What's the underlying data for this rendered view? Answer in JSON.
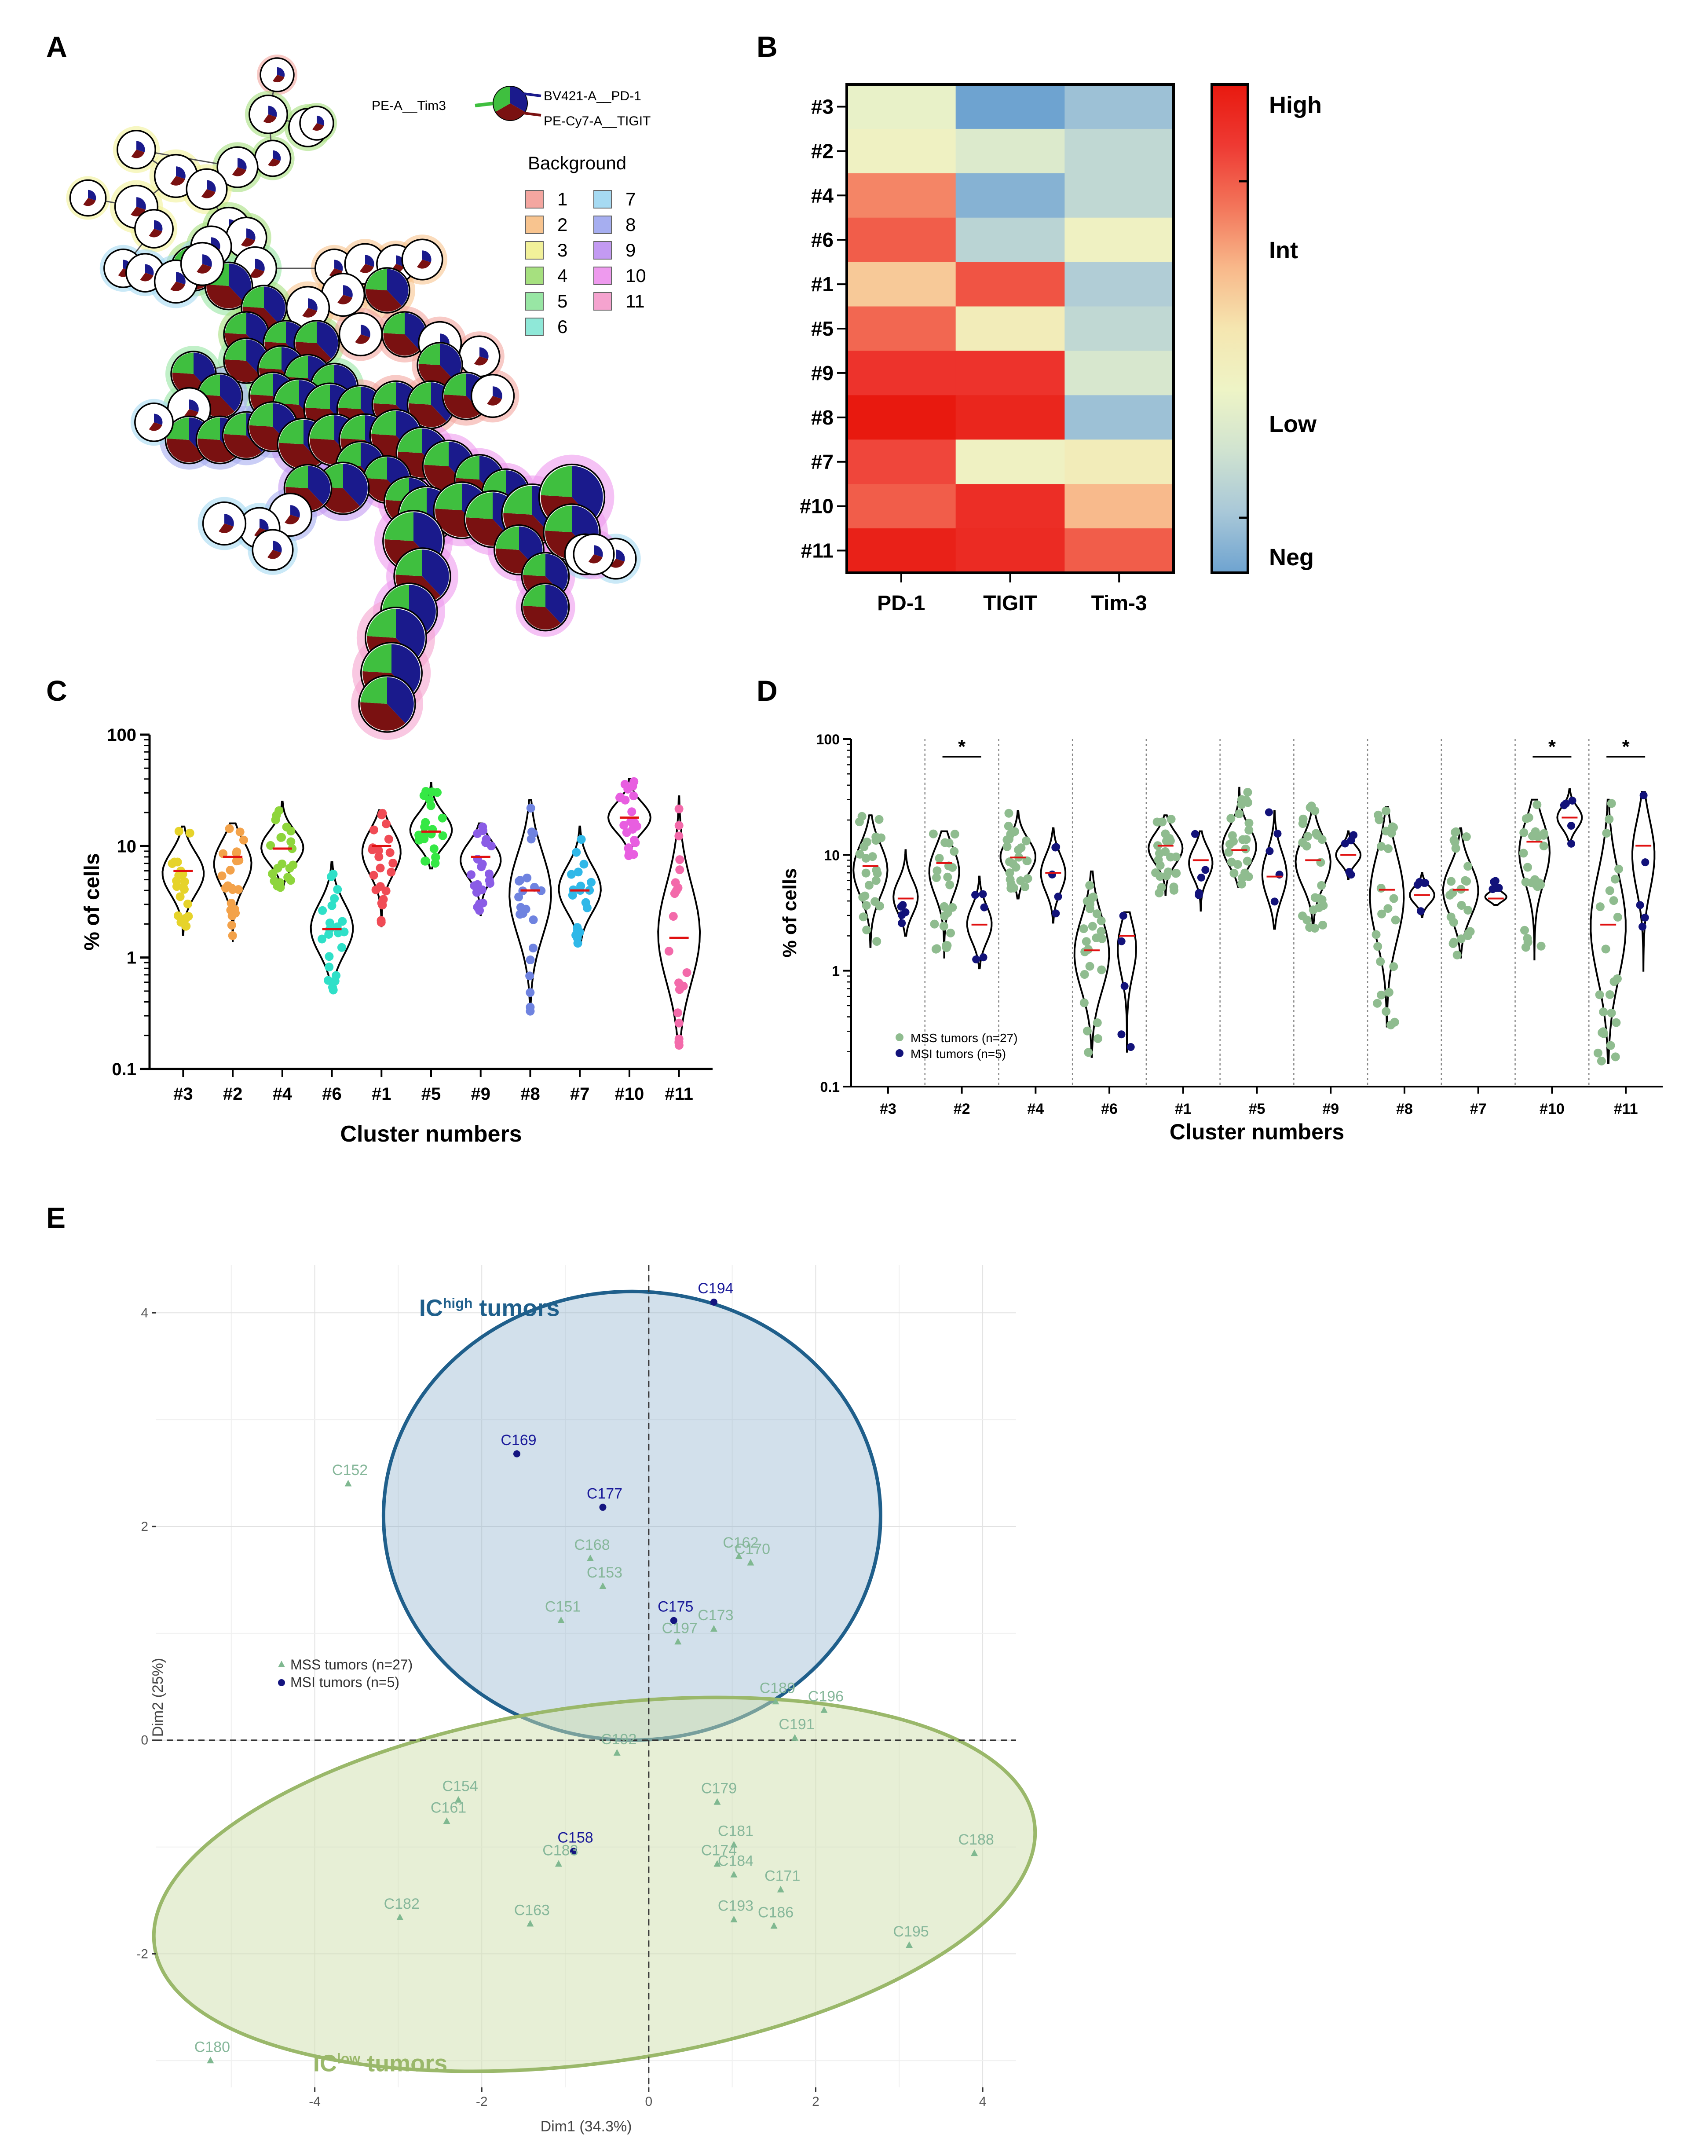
{
  "panels": {
    "A": "A",
    "B": "B",
    "C": "C",
    "D": "D",
    "E": "E"
  },
  "panel_a": {
    "legend_title": "Background",
    "legend_items": [
      "1",
      "2",
      "3",
      "4",
      "5",
      "6",
      "7",
      "8",
      "9",
      "10",
      "11"
    ],
    "legend_colors": [
      "#f4a6a0",
      "#f8c48f",
      "#f2f19a",
      "#a6e07f",
      "#98e6a4",
      "#8fe8d8",
      "#a6daf2",
      "#a6aef0",
      "#c39af2",
      "#ee9aee",
      "#f5a3cf"
    ],
    "marker_labels": [
      "PE-A__Tim3",
      "BV421-A__PD-1",
      "PE-Cy7-A__TIGIT"
    ],
    "marker_colors": {
      "pd1": "#1a1a8c",
      "tigit": "#7a1111",
      "tim3": "#3fbf3f"
    }
  },
  "chart_data": [
    {
      "panel": "B",
      "type": "heatmap",
      "rows": [
        "#3",
        "#2",
        "#4",
        "#6",
        "#1",
        "#5",
        "#9",
        "#8",
        "#7",
        "#10",
        "#11"
      ],
      "columns": [
        "PD-1",
        "TIGIT",
        "Tim-3"
      ],
      "values": [
        [
          0.35,
          0.0,
          0.1
        ],
        [
          0.4,
          0.3,
          0.2
        ],
        [
          0.72,
          0.05,
          0.2
        ],
        [
          0.8,
          0.18,
          0.4
        ],
        [
          0.58,
          0.82,
          0.15
        ],
        [
          0.78,
          0.45,
          0.2
        ],
        [
          0.9,
          0.9,
          0.28
        ],
        [
          1.0,
          0.95,
          0.1
        ],
        [
          0.85,
          0.4,
          0.45
        ],
        [
          0.8,
          0.92,
          0.62
        ],
        [
          0.97,
          0.93,
          0.8
        ]
      ],
      "colorbar_labels": [
        "High",
        "Int",
        "Low",
        "Neg"
      ],
      "colorscale": [
        "#6ea3d0",
        "#a9c8d8",
        "#d0e3d0",
        "#eef4c6",
        "#f5e6b0",
        "#f8b88a",
        "#f3755a",
        "#ee3a33",
        "#e8190f"
      ]
    },
    {
      "panel": "C",
      "type": "violin",
      "ylabel": "% of cells",
      "xlabel": "Cluster numbers",
      "y_scale": "log",
      "ylim": [
        0.1,
        100
      ],
      "ytick_labels": [
        "0.1",
        "1",
        "10",
        "100"
      ],
      "categories": [
        "#3",
        "#2",
        "#4",
        "#6",
        "#1",
        "#5",
        "#9",
        "#8",
        "#7",
        "#10",
        "#11"
      ],
      "colors": [
        "#e6d32a",
        "#f3a24a",
        "#8ed53c",
        "#2fe0c8",
        "#f04b55",
        "#35e845",
        "#8a5ce6",
        "#6f83e0",
        "#30b8e8",
        "#e85ee0",
        "#f36aaa"
      ],
      "medians": [
        6.0,
        8.0,
        9.5,
        1.8,
        10.0,
        13.5,
        8.0,
        4.0,
        4.0,
        18.0,
        1.5
      ],
      "mins": [
        1.6,
        1.4,
        4.2,
        0.5,
        1.9,
        6.3,
        2.4,
        0.33,
        1.3,
        8.2,
        0.16
      ],
      "maxs": [
        15.0,
        16.0,
        25.0,
        7.2,
        21.0,
        37.0,
        16.0,
        26.0,
        15.0,
        40.0,
        28.0
      ]
    },
    {
      "panel": "D",
      "type": "violin",
      "ylabel": "% of cells",
      "xlabel": "Cluster numbers",
      "y_scale": "log",
      "ylim": [
        0.1,
        100
      ],
      "ytick_labels": [
        "0.1",
        "1",
        "10",
        "100"
      ],
      "categories": [
        "#3",
        "#2",
        "#4",
        "#6",
        "#1",
        "#5",
        "#9",
        "#8",
        "#7",
        "#10",
        "#11"
      ],
      "series": [
        {
          "name": "MSS tumors (n=27)",
          "color": "#8fbc8f",
          "medians": [
            8.0,
            8.5,
            9.5,
            1.5,
            12.0,
            11.0,
            9.0,
            5.0,
            5.0,
            13.0,
            2.5
          ],
          "mins": [
            1.6,
            1.3,
            4.2,
            0.18,
            4.5,
            5.3,
            2.3,
            0.33,
            1.3,
            1.25,
            0.16
          ],
          "maxs": [
            22.0,
            16.0,
            24.0,
            7.2,
            22.0,
            38.0,
            27.0,
            26.0,
            17.0,
            30.0,
            30.0
          ]
        },
        {
          "name": "MSI tumors (n=5)",
          "color": "#12127a",
          "medians": [
            4.2,
            2.5,
            7.0,
            2.0,
            9.0,
            6.5,
            10.0,
            4.5,
            4.2,
            21.0,
            12.0
          ],
          "mins": [
            2.0,
            1.05,
            2.6,
            0.2,
            3.3,
            2.3,
            6.2,
            2.9,
            3.7,
            12.0,
            1.0
          ],
          "maxs": [
            11.0,
            6.5,
            17.0,
            3.2,
            16.0,
            24.0,
            16.0,
            7.0,
            6.0,
            37.0,
            35.0
          ]
        }
      ],
      "significance": {
        "#2": "*",
        "#10": "*",
        "#11": "*"
      }
    },
    {
      "panel": "E",
      "type": "scatter",
      "xlabel": "Dim1 (34.3%)",
      "ylabel": "Dim2 (25%)",
      "xlim": [
        -5.9,
        4.4
      ],
      "ylim": [
        -3.25,
        4.45
      ],
      "xticks": [
        -4,
        -2,
        0,
        2,
        4
      ],
      "yticks": [
        -2,
        0,
        2,
        4
      ],
      "groups": [
        {
          "label_main": "IC",
          "label_sup": "high",
          "label_rest": " tumors",
          "color": "#1f5f8b",
          "fill": "#7ea7c6"
        },
        {
          "label_main": "IC",
          "label_sup": "low",
          "label_rest": " tumors",
          "color": "#9ab86a",
          "fill": "#cfe0ad"
        }
      ],
      "legend": [
        {
          "name": "MSS tumors (n=27)",
          "color": "#7fb890"
        },
        {
          "name": "MSI tumors (n=5)",
          "color": "#141480"
        }
      ],
      "points": [
        {
          "label": "C194",
          "x": 0.78,
          "y": 4.1,
          "type": "MSI"
        },
        {
          "label": "C169",
          "x": -1.58,
          "y": 2.68,
          "type": "MSI"
        },
        {
          "label": "C177",
          "x": -0.55,
          "y": 2.18,
          "type": "MSI"
        },
        {
          "label": "C175",
          "x": 0.3,
          "y": 1.12,
          "type": "MSI"
        },
        {
          "label": "C158",
          "x": -0.9,
          "y": -1.04,
          "type": "MSI"
        },
        {
          "label": "C152",
          "x": -3.6,
          "y": 2.4,
          "type": "MSS"
        },
        {
          "label": "C162",
          "x": 1.08,
          "y": 1.72,
          "type": "MSS"
        },
        {
          "label": "C170",
          "x": 1.22,
          "y": 1.66,
          "type": "MSS"
        },
        {
          "label": "C168",
          "x": -0.7,
          "y": 1.7,
          "type": "MSS"
        },
        {
          "label": "C153",
          "x": -0.55,
          "y": 1.44,
          "type": "MSS"
        },
        {
          "label": "C173",
          "x": 0.78,
          "y": 1.04,
          "type": "MSS"
        },
        {
          "label": "C151",
          "x": -1.05,
          "y": 1.12,
          "type": "MSS"
        },
        {
          "label": "C197",
          "x": 0.35,
          "y": 0.92,
          "type": "MSS"
        },
        {
          "label": "C189",
          "x": 1.52,
          "y": 0.36,
          "type": "MSS"
        },
        {
          "label": "C196",
          "x": 2.1,
          "y": 0.28,
          "type": "MSS"
        },
        {
          "label": "C191",
          "x": 1.75,
          "y": 0.02,
          "type": "MSS"
        },
        {
          "label": "C192",
          "x": -0.38,
          "y": -0.12,
          "type": "MSS"
        },
        {
          "label": "C154",
          "x": -2.28,
          "y": -0.56,
          "type": "MSS"
        },
        {
          "label": "C161",
          "x": -2.42,
          "y": -0.76,
          "type": "MSS"
        },
        {
          "label": "C179",
          "x": 0.82,
          "y": -0.58,
          "type": "MSS"
        },
        {
          "label": "C181",
          "x": 1.02,
          "y": -0.98,
          "type": "MSS"
        },
        {
          "label": "C183",
          "x": -1.08,
          "y": -1.16,
          "type": "MSS"
        },
        {
          "label": "C174",
          "x": 0.82,
          "y": -1.16,
          "type": "MSS"
        },
        {
          "label": "C184",
          "x": 1.02,
          "y": -1.26,
          "type": "MSS"
        },
        {
          "label": "C171",
          "x": 1.58,
          "y": -1.4,
          "type": "MSS"
        },
        {
          "label": "C188",
          "x": 3.9,
          "y": -1.06,
          "type": "MSS"
        },
        {
          "label": "C182",
          "x": -2.98,
          "y": -1.66,
          "type": "MSS"
        },
        {
          "label": "C193",
          "x": 1.02,
          "y": -1.68,
          "type": "MSS"
        },
        {
          "label": "C186",
          "x": 1.5,
          "y": -1.74,
          "type": "MSS"
        },
        {
          "label": "C163",
          "x": -1.42,
          "y": -1.72,
          "type": "MSS"
        },
        {
          "label": "C195",
          "x": 3.12,
          "y": -1.92,
          "type": "MSS"
        },
        {
          "label": "C180",
          "x": -5.25,
          "y": -3.0,
          "type": "MSS"
        }
      ]
    }
  ]
}
